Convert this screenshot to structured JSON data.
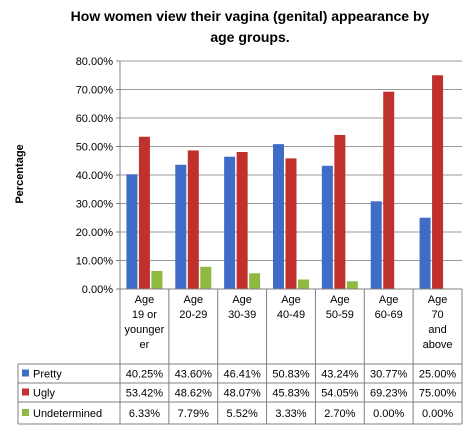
{
  "chart_data": {
    "type": "bar",
    "title_lines": [
      "How women view their vagina (genital) appearance by",
      "age groups."
    ],
    "ylabel": "Percentage",
    "ylim": [
      0,
      80
    ],
    "y_ticks": [
      "0.00%",
      "10.00%",
      "20.00%",
      "30.00%",
      "40.00%",
      "50.00%",
      "60.00%",
      "70.00%",
      "80.00%"
    ],
    "grid": true,
    "legend": "table-rows",
    "categories": [
      [
        "Age",
        "19 or",
        "younger",
        "er"
      ],
      [
        "Age",
        "20-29"
      ],
      [
        "Age",
        "30-39"
      ],
      [
        "Age",
        "40-49"
      ],
      [
        "Age",
        "50-59"
      ],
      [
        "Age",
        "60-69"
      ],
      [
        "Age",
        "70",
        "and",
        "above"
      ]
    ],
    "series": [
      {
        "name": "Pretty",
        "color": "#3f6cc7",
        "values": [
          40.25,
          43.6,
          46.41,
          50.83,
          43.24,
          30.77,
          25.0
        ],
        "labels": [
          "40.25%",
          "43.60%",
          "46.41%",
          "50.83%",
          "43.24%",
          "30.77%",
          "25.00%"
        ]
      },
      {
        "name": "Ugly",
        "color": "#c0302d",
        "values": [
          53.42,
          48.62,
          48.07,
          45.83,
          54.05,
          69.23,
          75.0
        ],
        "labels": [
          "53.42%",
          "48.62%",
          "48.07%",
          "45.83%",
          "54.05%",
          "69.23%",
          "75.00%"
        ]
      },
      {
        "name": "Undetermined",
        "color": "#8fba3f",
        "values": [
          6.33,
          7.79,
          5.52,
          3.33,
          2.7,
          0.0,
          0.0
        ],
        "labels": [
          "6.33%",
          "7.79%",
          "5.52%",
          "3.33%",
          "2.70%",
          "0.00%",
          "0.00%"
        ]
      }
    ]
  }
}
